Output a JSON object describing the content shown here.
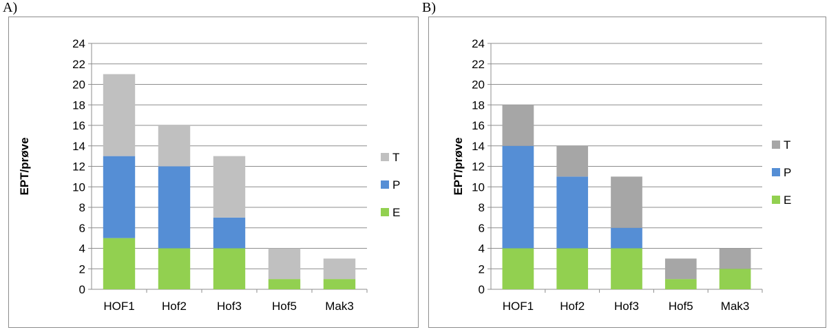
{
  "panels": [
    {
      "letter": "A)"
    },
    {
      "letter": "B)"
    }
  ],
  "chart_data": [
    {
      "type": "bar",
      "stacked": true,
      "categories": [
        "HOF1",
        "Hof2",
        "Hof3",
        "Hof5",
        "Mak3"
      ],
      "ylabel": "EPT/prøve",
      "ylim": [
        0,
        24
      ],
      "yticks": [
        0,
        2,
        4,
        6,
        8,
        10,
        12,
        14,
        16,
        18,
        20,
        22,
        24
      ],
      "grid": true,
      "legend_position": "right",
      "series": [
        {
          "name": "E",
          "color": "#92d050",
          "values": [
            5,
            4,
            4,
            1,
            1
          ]
        },
        {
          "name": "P",
          "color": "#558ed5",
          "values": [
            8,
            8,
            3,
            0,
            0
          ]
        },
        {
          "name": "T",
          "color": "#c0c0c0",
          "values": [
            8,
            4,
            6,
            3,
            2
          ]
        }
      ]
    },
    {
      "type": "bar",
      "stacked": true,
      "categories": [
        "HOF1",
        "Hof2",
        "Hof3",
        "Hof5",
        "Mak3"
      ],
      "ylabel": "EPT/prøve",
      "ylim": [
        0,
        24
      ],
      "yticks": [
        0,
        2,
        4,
        6,
        8,
        10,
        12,
        14,
        16,
        18,
        20,
        22,
        24
      ],
      "grid": true,
      "legend_position": "right",
      "series": [
        {
          "name": "E",
          "color": "#92d050",
          "values": [
            4,
            4,
            4,
            1,
            2
          ]
        },
        {
          "name": "P",
          "color": "#558ed5",
          "values": [
            10,
            7,
            2,
            0,
            0
          ]
        },
        {
          "name": "T",
          "color": "#a6a6a6",
          "values": [
            4,
            3,
            5,
            2,
            2
          ]
        }
      ]
    }
  ]
}
